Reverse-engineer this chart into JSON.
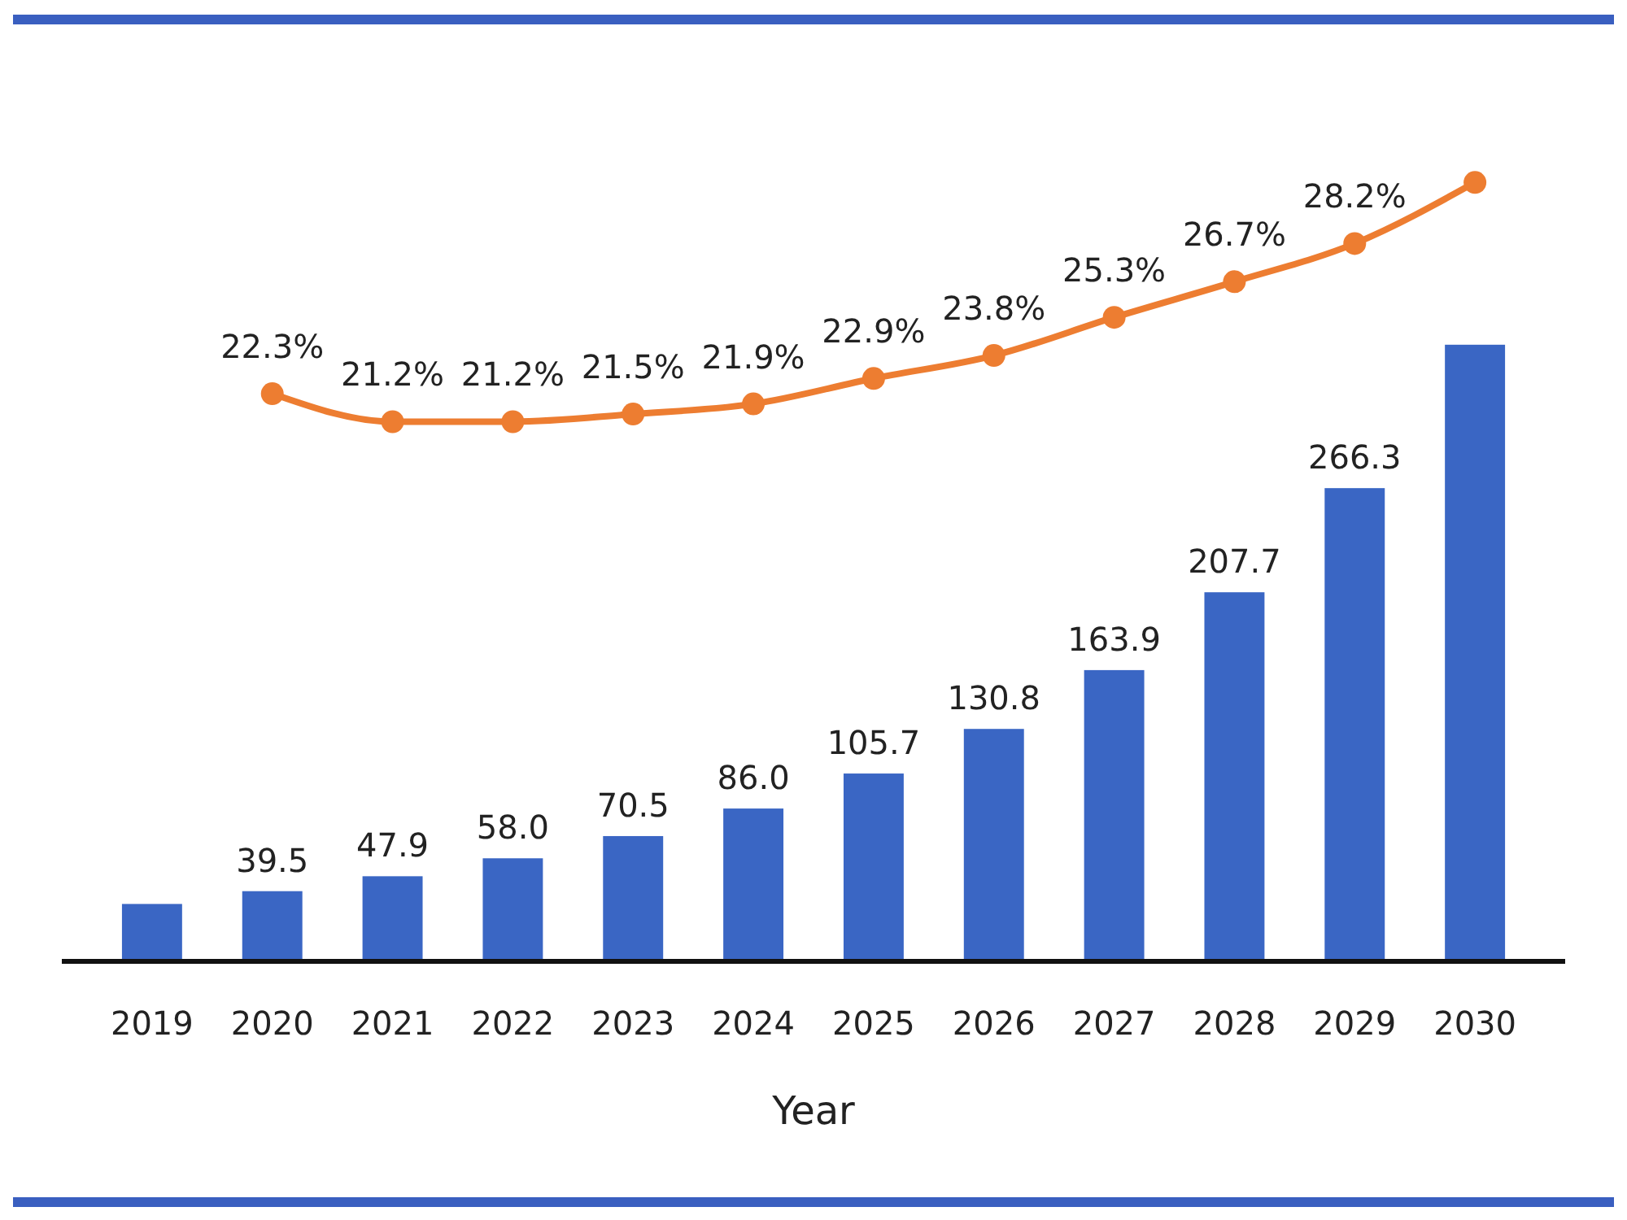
{
  "chart_data": {
    "type": "bar",
    "xlabel": "Year",
    "categories": [
      "2019",
      "2020",
      "2021",
      "2022",
      "2023",
      "2024",
      "2025",
      "2026",
      "2027",
      "2028",
      "2029",
      "2030"
    ],
    "series": [
      {
        "color": "#3a66c4",
        "values": [
          32.3,
          39.5,
          47.9,
          58.0,
          70.5,
          86.0,
          105.7,
          130.8,
          163.9,
          207.7,
          266.3,
          347
        ],
        "value_labels": [
          null,
          "39.5",
          "47.9",
          "58.0",
          "70.5",
          "86.0",
          "105.7",
          "130.8",
          "163.9",
          "207.7",
          "266.3",
          null
        ]
      },
      {
        "type": "line",
        "axis": "y2",
        "color": "#ed7d31",
        "marker": "circle",
        "values": [
          null,
          22.3,
          21.2,
          21.2,
          21.5,
          21.9,
          22.9,
          23.8,
          25.3,
          26.7,
          28.2,
          30.6
        ],
        "value_labels": [
          null,
          "22.3%",
          "21.2%",
          "21.2%",
          "21.5%",
          "21.9%",
          "22.9%",
          "23.8%",
          "25.3%",
          "26.7%",
          "28.2%",
          null
        ]
      }
    ],
    "ylim": [
      0,
      530
    ],
    "y2lim": [
      0,
      37
    ],
    "tick_labels": "x",
    "grid": false
  }
}
